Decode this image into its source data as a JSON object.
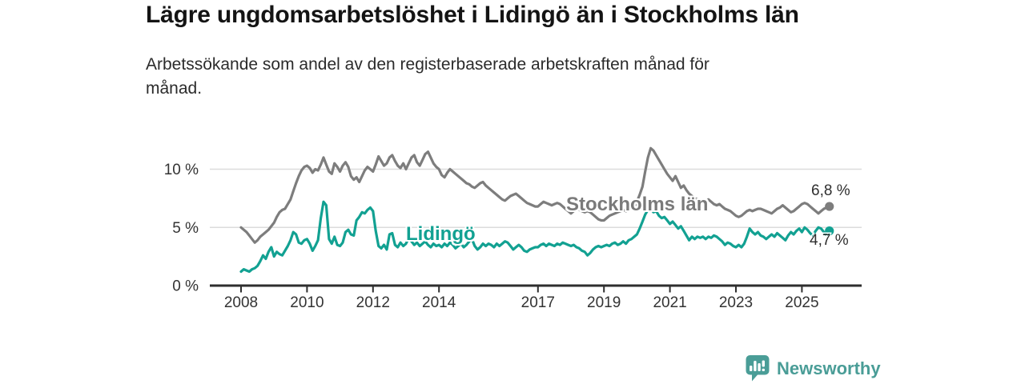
{
  "title": "Lägre ungdomsarbetslöshet i Lidingö än i Stockholms län",
  "subtitle": {
    "lines": [
      "Arbetssökande som andel av den registerbaserade arbetskraften månad för",
      "månad."
    ]
  },
  "branding": {
    "logo_text": "Newsworthy",
    "logo_icon": "speech-bubble-bar-chart",
    "color": "#4a9d97"
  },
  "colors": {
    "stockholm_line": "#7d7d7d",
    "lidingo_line": "#12a192",
    "grid": "#dcdcdc",
    "axis": "#2e2e2e",
    "tick_text": "#333333"
  },
  "chart_data": {
    "type": "line",
    "unit": "%",
    "frequency": "monthly",
    "start": "2008-01",
    "end": "2025-11",
    "grid": "horizontal-light",
    "ylim": [
      0,
      12.5
    ],
    "yticks": [
      {
        "value": 0,
        "label": "0 %"
      },
      {
        "value": 5,
        "label": "5 %"
      },
      {
        "value": 10,
        "label": "10 %"
      }
    ],
    "xticks": [
      {
        "year": 2008,
        "label": "2008"
      },
      {
        "year": 2010,
        "label": "2010"
      },
      {
        "year": 2012,
        "label": "2012"
      },
      {
        "year": 2014,
        "label": "2014"
      },
      {
        "year": 2017,
        "label": "2017"
      },
      {
        "year": 2019,
        "label": "2019"
      },
      {
        "year": 2021,
        "label": "2021"
      },
      {
        "year": 2023,
        "label": "2023"
      },
      {
        "year": 2025,
        "label": "2025"
      }
    ],
    "series": [
      {
        "name": "Stockholms län",
        "color": "#7d7d7d",
        "end_label": "6,8 %",
        "end_value": 6.8,
        "values": [
          5.0,
          4.8,
          4.6,
          4.3,
          4.0,
          3.7,
          3.9,
          4.2,
          4.4,
          4.6,
          4.8,
          5.1,
          5.4,
          5.9,
          6.3,
          6.5,
          6.6,
          7.0,
          7.4,
          8.1,
          8.8,
          9.4,
          9.9,
          10.2,
          10.3,
          10.1,
          9.7,
          10.0,
          9.9,
          10.4,
          11.0,
          10.4,
          9.8,
          9.6,
          10.5,
          10.2,
          9.8,
          10.3,
          10.6,
          10.2,
          9.4,
          9.1,
          9.3,
          8.9,
          9.4,
          9.9,
          10.2,
          10.0,
          9.8,
          10.4,
          11.1,
          10.7,
          10.3,
          10.5,
          11.0,
          11.2,
          10.7,
          10.3,
          10.1,
          10.5,
          10.0,
          10.5,
          11.0,
          11.2,
          10.6,
          10.3,
          10.8,
          11.3,
          11.5,
          11.0,
          10.5,
          10.2,
          10.0,
          9.5,
          9.3,
          9.7,
          10.0,
          9.8,
          9.6,
          9.4,
          9.2,
          9.0,
          8.8,
          8.7,
          8.5,
          8.4,
          8.6,
          8.8,
          8.9,
          8.6,
          8.4,
          8.2,
          8.0,
          7.8,
          7.6,
          7.4,
          7.3,
          7.5,
          7.7,
          7.8,
          7.9,
          7.7,
          7.5,
          7.3,
          7.1,
          7.0,
          6.9,
          6.8,
          6.8,
          7.0,
          7.2,
          7.1,
          7.0,
          6.9,
          7.0,
          7.1,
          7.0,
          6.8,
          6.6,
          6.4,
          6.2,
          6.4,
          6.6,
          6.5,
          6.4,
          6.3,
          6.4,
          6.3,
          6.1,
          5.9,
          5.7,
          5.6,
          5.6,
          5.8,
          6.0,
          6.1,
          6.2,
          6.3,
          6.4,
          6.5,
          6.4,
          6.5,
          6.6,
          6.8,
          7.2,
          7.8,
          8.5,
          9.8,
          11.0,
          11.8,
          11.6,
          11.2,
          10.8,
          10.4,
          10.0,
          9.6,
          9.3,
          9.0,
          9.4,
          8.9,
          8.4,
          8.6,
          8.2,
          7.9,
          7.7,
          7.5,
          7.4,
          7.3,
          7.2,
          7.3,
          7.4,
          7.2,
          7.0,
          6.9,
          7.0,
          6.8,
          6.6,
          6.5,
          6.4,
          6.2,
          6.0,
          5.9,
          6.0,
          6.2,
          6.4,
          6.5,
          6.4,
          6.5,
          6.6,
          6.6,
          6.5,
          6.4,
          6.3,
          6.2,
          6.4,
          6.6,
          6.7,
          6.9,
          6.7,
          6.5,
          6.3,
          6.4,
          6.6,
          6.8,
          7.0,
          7.1,
          7.0,
          6.8,
          6.6,
          6.4,
          6.2,
          6.4,
          6.6,
          6.7,
          6.8
        ]
      },
      {
        "name": "Lidingö",
        "color": "#12a192",
        "end_label": "4,7 %",
        "end_value": 4.7,
        "values": [
          1.2,
          1.4,
          1.3,
          1.2,
          1.4,
          1.5,
          1.7,
          2.1,
          2.6,
          2.3,
          2.9,
          3.3,
          2.5,
          2.9,
          2.7,
          2.6,
          3.0,
          3.4,
          3.9,
          4.6,
          4.4,
          3.7,
          3.6,
          3.9,
          4.0,
          3.6,
          3.0,
          3.4,
          3.9,
          5.8,
          7.2,
          6.9,
          4.0,
          3.6,
          4.2,
          3.5,
          3.4,
          3.7,
          4.6,
          4.8,
          4.4,
          4.3,
          5.6,
          5.9,
          6.3,
          6.2,
          6.5,
          6.7,
          6.4,
          4.7,
          3.4,
          3.2,
          3.5,
          3.1,
          4.4,
          4.5,
          3.5,
          3.3,
          3.7,
          3.4,
          3.6,
          4.1,
          3.8,
          3.5,
          3.7,
          3.4,
          3.6,
          3.8,
          3.5,
          3.3,
          3.6,
          3.4,
          3.5,
          3.3,
          3.6,
          3.4,
          3.7,
          3.5,
          3.2,
          3.4,
          3.6,
          3.3,
          3.5,
          3.8,
          4.0,
          3.4,
          3.1,
          3.3,
          3.6,
          3.4,
          3.6,
          3.5,
          3.3,
          3.6,
          3.4,
          3.6,
          3.8,
          3.7,
          3.4,
          3.1,
          3.3,
          3.5,
          3.3,
          3.0,
          2.9,
          3.1,
          3.2,
          3.3,
          3.3,
          3.5,
          3.6,
          3.4,
          3.6,
          3.5,
          3.4,
          3.6,
          3.5,
          3.7,
          3.6,
          3.5,
          3.4,
          3.5,
          3.3,
          3.2,
          3.0,
          2.9,
          2.6,
          2.8,
          3.1,
          3.3,
          3.4,
          3.3,
          3.4,
          3.5,
          3.4,
          3.6,
          3.7,
          3.5,
          3.6,
          3.8,
          3.6,
          3.9,
          4.0,
          4.2,
          4.4,
          4.9,
          5.5,
          6.1,
          6.5,
          6.6,
          6.3,
          6.4,
          6.0,
          5.8,
          5.9,
          5.6,
          5.3,
          5.5,
          5.2,
          4.9,
          5.1,
          4.7,
          4.3,
          3.9,
          4.2,
          4.0,
          4.2,
          4.1,
          4.2,
          4.0,
          4.2,
          4.1,
          4.3,
          4.2,
          4.0,
          3.8,
          3.5,
          3.7,
          3.6,
          3.4,
          3.3,
          3.5,
          3.3,
          3.6,
          4.2,
          4.9,
          4.6,
          4.4,
          4.6,
          4.3,
          4.2,
          4.0,
          4.2,
          4.4,
          4.2,
          4.5,
          4.3,
          4.1,
          3.9,
          4.3,
          4.6,
          4.4,
          4.7,
          4.9,
          4.6,
          5.0,
          4.8,
          4.5,
          4.3,
          4.7,
          5.0,
          4.9,
          4.6,
          4.3,
          4.7
        ]
      }
    ]
  }
}
